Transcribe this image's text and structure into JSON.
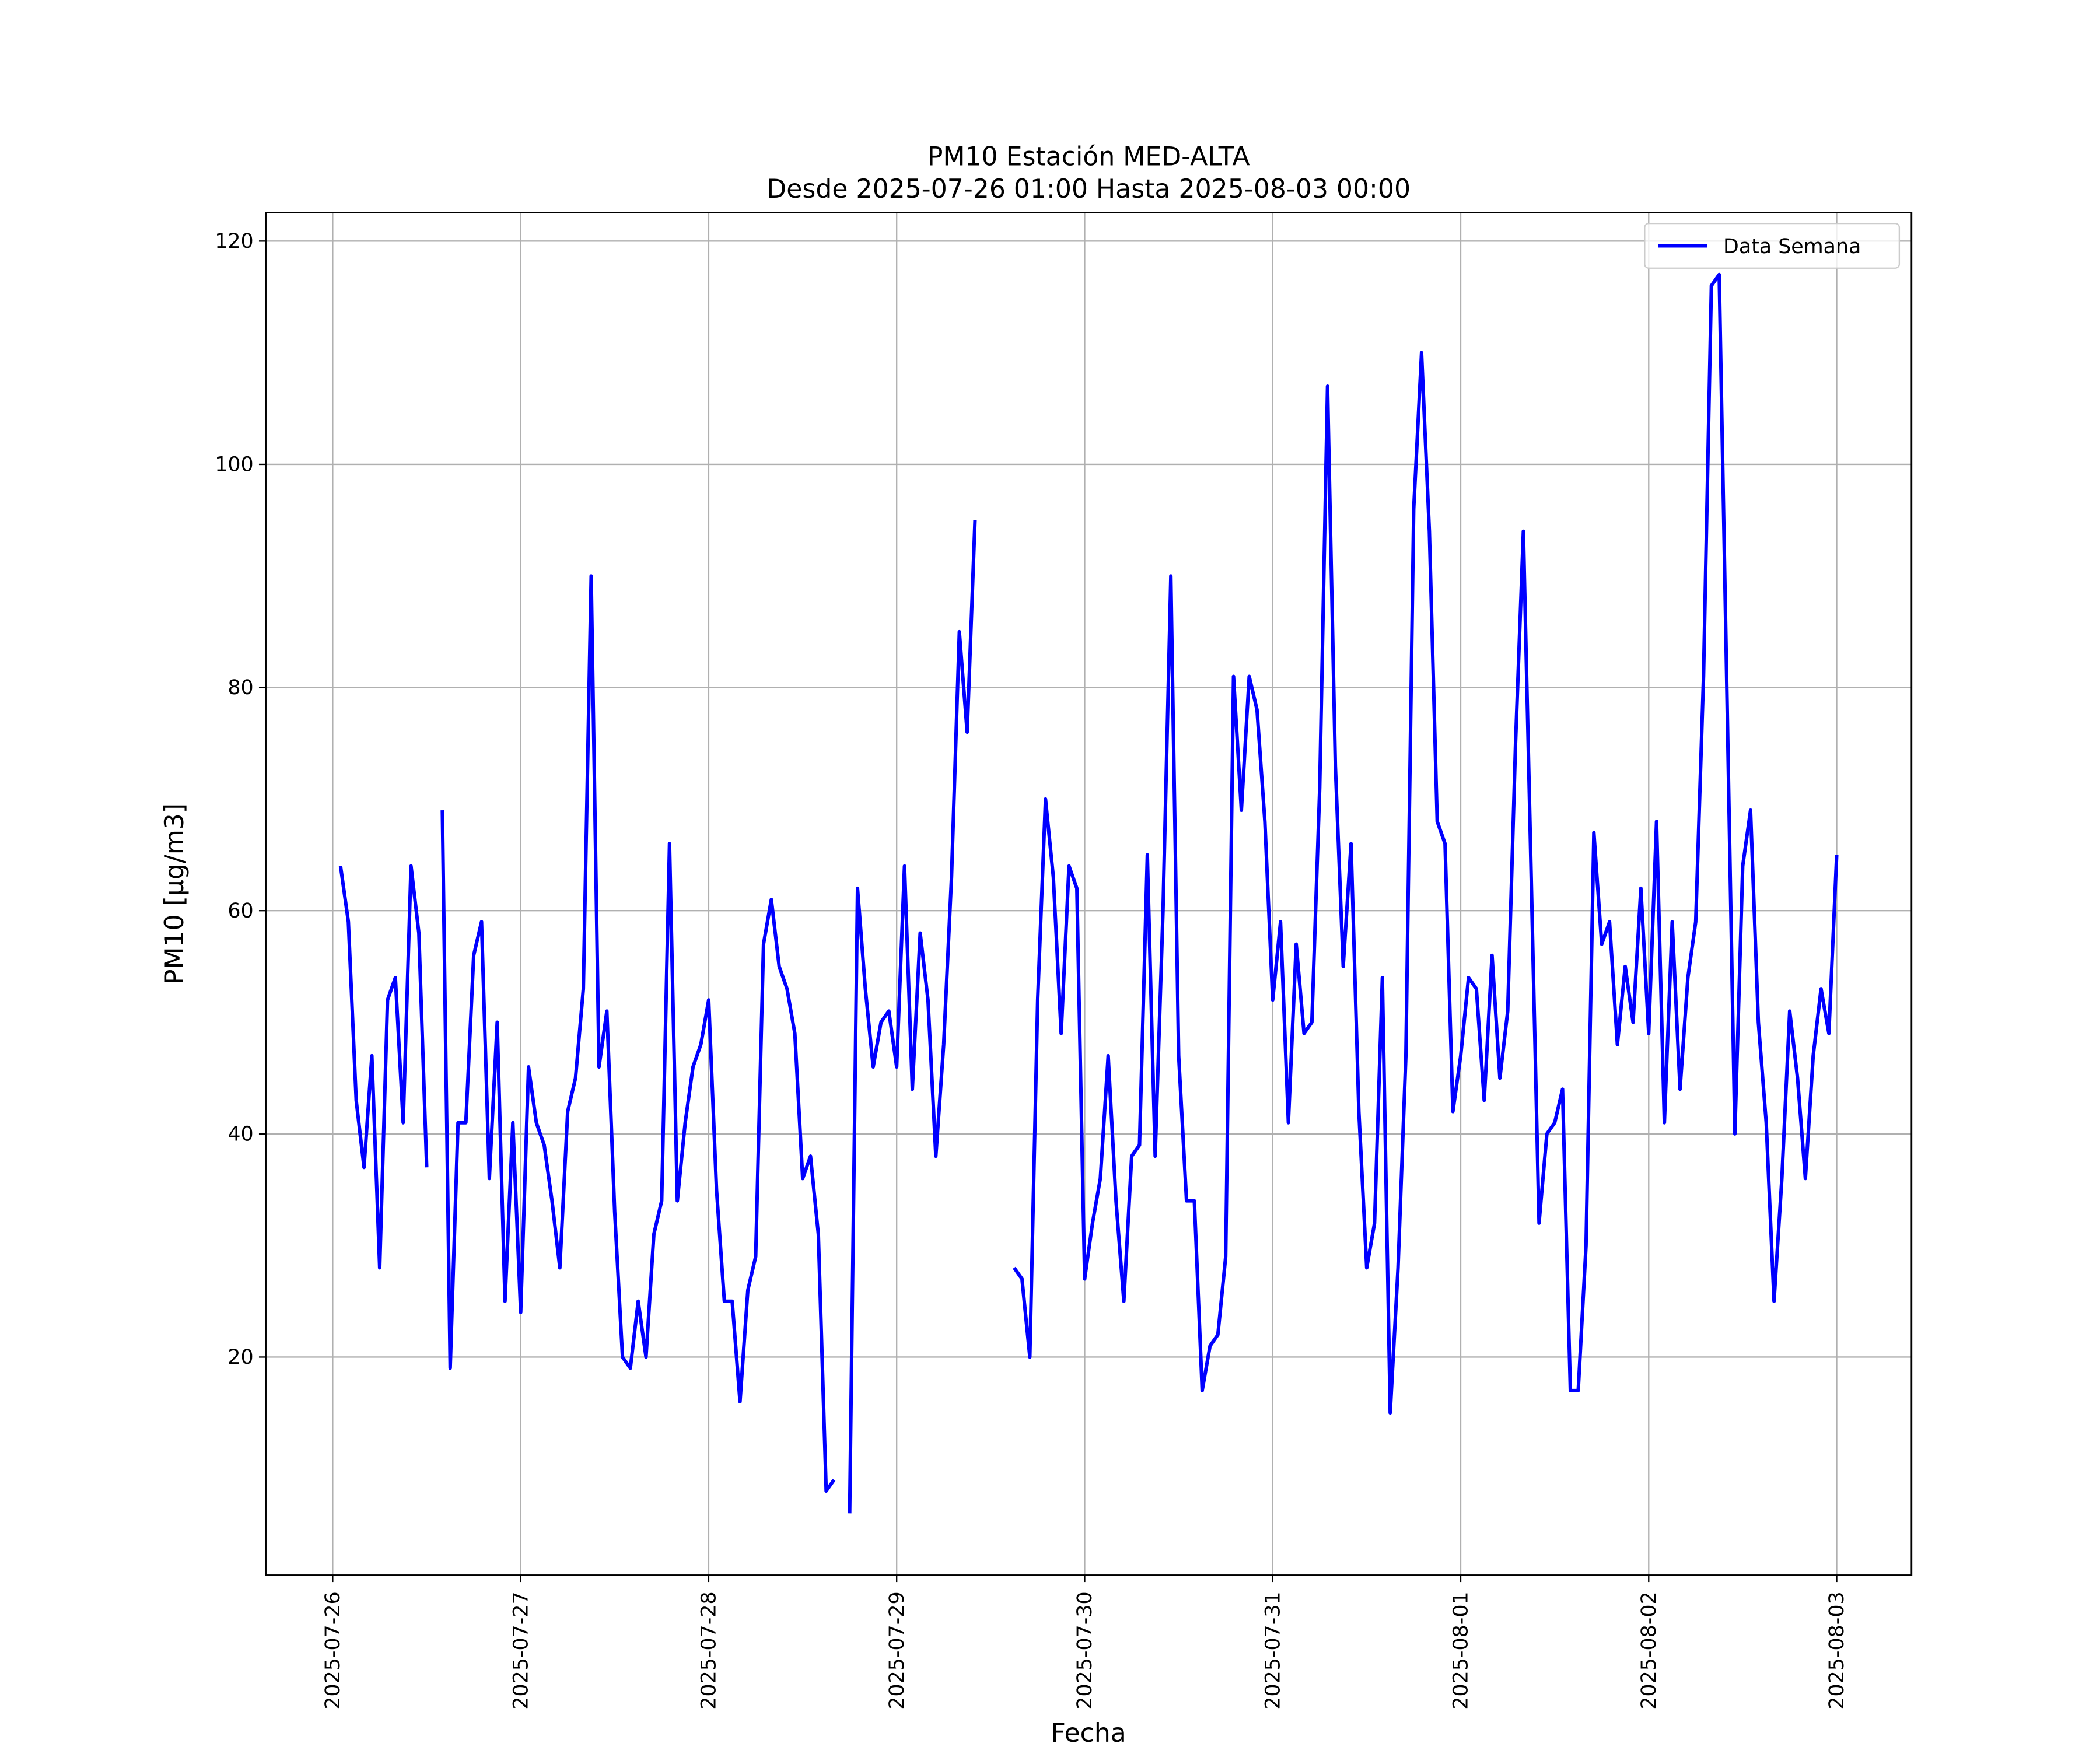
{
  "chart_data": {
    "type": "line",
    "title": "PM10 Estación MED-ALTA",
    "subtitle": "Desde 2025-07-26 01:00 Hasta 2025-08-03 00:00",
    "xlabel": "Fecha",
    "ylabel": "PM10 [μg/m3]",
    "x": [
      "2025-07-26 01:00",
      "2025-07-26 02:00",
      "2025-07-26 03:00",
      "2025-07-26 04:00",
      "2025-07-26 05:00",
      "2025-07-26 06:00",
      "2025-07-26 07:00",
      "2025-07-26 08:00",
      "2025-07-26 09:00",
      "2025-07-26 10:00",
      "2025-07-26 11:00",
      "2025-07-26 12:00",
      "2025-07-26 13:00",
      "2025-07-26 14:00",
      "2025-07-26 15:00",
      "2025-07-26 16:00",
      "2025-07-26 17:00",
      "2025-07-26 18:00",
      "2025-07-26 19:00",
      "2025-07-26 20:00",
      "2025-07-26 21:00",
      "2025-07-26 22:00",
      "2025-07-26 23:00",
      "2025-07-27 00:00",
      "2025-07-27 01:00",
      "2025-07-27 02:00",
      "2025-07-27 03:00",
      "2025-07-27 04:00",
      "2025-07-27 05:00",
      "2025-07-27 06:00",
      "2025-07-27 07:00",
      "2025-07-27 08:00",
      "2025-07-27 09:00",
      "2025-07-27 10:00",
      "2025-07-27 11:00",
      "2025-07-27 12:00",
      "2025-07-27 13:00",
      "2025-07-27 14:00",
      "2025-07-27 15:00",
      "2025-07-27 16:00",
      "2025-07-27 17:00",
      "2025-07-27 18:00",
      "2025-07-27 19:00",
      "2025-07-27 20:00",
      "2025-07-27 21:00",
      "2025-07-27 22:00",
      "2025-07-27 23:00",
      "2025-07-28 00:00",
      "2025-07-28 01:00",
      "2025-07-28 02:00",
      "2025-07-28 03:00",
      "2025-07-28 04:00",
      "2025-07-28 05:00",
      "2025-07-28 06:00",
      "2025-07-28 07:00",
      "2025-07-28 08:00",
      "2025-07-28 09:00",
      "2025-07-28 10:00",
      "2025-07-28 11:00",
      "2025-07-28 12:00",
      "2025-07-28 13:00",
      "2025-07-28 14:00",
      "2025-07-28 15:00",
      "2025-07-28 16:00",
      "2025-07-28 17:00",
      "2025-07-28 18:00",
      "2025-07-28 19:00",
      "2025-07-28 20:00",
      "2025-07-28 21:00",
      "2025-07-28 22:00",
      "2025-07-28 23:00",
      "2025-07-29 00:00",
      "2025-07-29 01:00",
      "2025-07-29 02:00",
      "2025-07-29 03:00",
      "2025-07-29 04:00",
      "2025-07-29 05:00",
      "2025-07-29 06:00",
      "2025-07-29 07:00",
      "2025-07-29 08:00",
      "2025-07-29 09:00",
      "2025-07-29 10:00",
      "2025-07-29 11:00",
      "2025-07-29 12:00",
      "2025-07-29 13:00",
      "2025-07-29 14:00",
      "2025-07-29 15:00",
      "2025-07-29 16:00",
      "2025-07-29 17:00",
      "2025-07-29 18:00",
      "2025-07-29 19:00",
      "2025-07-29 20:00",
      "2025-07-29 21:00",
      "2025-07-29 22:00",
      "2025-07-29 23:00",
      "2025-07-30 00:00",
      "2025-07-30 01:00",
      "2025-07-30 02:00",
      "2025-07-30 03:00",
      "2025-07-30 04:00",
      "2025-07-30 05:00",
      "2025-07-30 06:00",
      "2025-07-30 07:00",
      "2025-07-30 08:00",
      "2025-07-30 09:00",
      "2025-07-30 10:00",
      "2025-07-30 11:00",
      "2025-07-30 12:00",
      "2025-07-30 13:00",
      "2025-07-30 14:00",
      "2025-07-30 15:00",
      "2025-07-30 16:00",
      "2025-07-30 17:00",
      "2025-07-30 18:00",
      "2025-07-30 19:00",
      "2025-07-30 20:00",
      "2025-07-30 21:00",
      "2025-07-30 22:00",
      "2025-07-30 23:00",
      "2025-07-31 00:00",
      "2025-07-31 01:00",
      "2025-07-31 02:00",
      "2025-07-31 03:00",
      "2025-07-31 04:00",
      "2025-07-31 05:00",
      "2025-07-31 06:00",
      "2025-07-31 07:00",
      "2025-07-31 08:00",
      "2025-07-31 09:00",
      "2025-07-31 10:00",
      "2025-07-31 11:00",
      "2025-07-31 12:00",
      "2025-07-31 13:00",
      "2025-07-31 14:00",
      "2025-07-31 15:00",
      "2025-07-31 16:00",
      "2025-07-31 17:00",
      "2025-07-31 18:00",
      "2025-07-31 19:00",
      "2025-07-31 20:00",
      "2025-07-31 21:00",
      "2025-07-31 22:00",
      "2025-07-31 23:00",
      "2025-08-01 00:00",
      "2025-08-01 01:00",
      "2025-08-01 02:00",
      "2025-08-01 03:00",
      "2025-08-01 04:00",
      "2025-08-01 05:00",
      "2025-08-01 06:00",
      "2025-08-01 07:00",
      "2025-08-01 08:00",
      "2025-08-01 09:00",
      "2025-08-01 10:00",
      "2025-08-01 11:00",
      "2025-08-01 12:00",
      "2025-08-01 13:00",
      "2025-08-01 14:00",
      "2025-08-01 15:00",
      "2025-08-01 16:00",
      "2025-08-01 17:00",
      "2025-08-01 18:00",
      "2025-08-01 19:00",
      "2025-08-01 20:00",
      "2025-08-01 21:00",
      "2025-08-01 22:00",
      "2025-08-01 23:00",
      "2025-08-02 00:00",
      "2025-08-02 01:00",
      "2025-08-02 02:00",
      "2025-08-02 03:00",
      "2025-08-02 04:00",
      "2025-08-02 05:00",
      "2025-08-02 06:00",
      "2025-08-02 07:00",
      "2025-08-02 08:00",
      "2025-08-02 09:00",
      "2025-08-02 10:00",
      "2025-08-02 11:00",
      "2025-08-02 12:00",
      "2025-08-02 13:00",
      "2025-08-02 14:00",
      "2025-08-02 15:00",
      "2025-08-02 16:00",
      "2025-08-02 17:00",
      "2025-08-02 18:00",
      "2025-08-02 19:00",
      "2025-08-02 20:00",
      "2025-08-02 21:00",
      "2025-08-02 22:00",
      "2025-08-02 23:00",
      "2025-08-03 00:00"
    ],
    "series": [
      {
        "name": "Data Semana",
        "color": "#0000ff",
        "values": [
          64,
          59,
          43,
          37,
          47,
          28,
          52,
          54,
          41,
          64,
          58,
          37,
          null,
          69,
          19,
          41,
          41,
          56,
          59,
          36,
          50,
          25,
          41,
          24,
          46,
          41,
          39,
          34,
          28,
          42,
          45,
          53,
          90,
          46,
          51,
          33,
          20,
          19,
          25,
          20,
          31,
          34,
          66,
          34,
          41,
          46,
          48,
          52,
          35,
          25,
          25,
          16,
          26,
          29,
          57,
          61,
          55,
          53,
          49,
          36,
          38,
          31,
          8,
          9,
          null,
          6,
          62,
          53,
          46,
          50,
          51,
          46,
          64,
          44,
          58,
          52,
          38,
          48,
          63,
          85,
          76,
          95,
          null,
          null,
          null,
          null,
          28,
          27,
          20,
          52,
          70,
          63,
          49,
          64,
          62,
          27,
          32,
          36,
          47,
          34,
          25,
          38,
          39,
          65,
          38,
          60,
          90,
          47,
          34,
          34,
          17,
          21,
          22,
          29,
          81,
          69,
          81,
          78,
          68,
          52,
          59,
          41,
          57,
          49,
          50,
          71,
          107,
          73,
          55,
          66,
          42,
          28,
          32,
          54,
          15,
          28,
          47,
          96,
          110,
          94,
          68,
          66,
          42,
          47,
          54,
          53,
          43,
          56,
          45,
          51,
          75,
          94,
          63,
          32,
          40,
          41,
          44,
          17,
          17,
          30,
          67,
          57,
          59,
          48,
          55,
          50,
          62,
          49,
          68,
          41,
          59,
          44,
          54,
          59,
          81,
          116,
          117,
          79,
          40,
          64,
          69,
          50,
          41,
          25,
          36,
          51,
          45,
          36,
          47,
          53,
          49,
          65
        ]
      }
    ],
    "xlim": [
      "2025-07-25 15:27",
      "2025-08-03 09:33"
    ],
    "xticks": [
      "2025-07-26",
      "2025-07-27",
      "2025-07-28",
      "2025-07-29",
      "2025-07-30",
      "2025-07-31",
      "2025-08-01",
      "2025-08-02",
      "2025-08-03"
    ],
    "ylim": [
      0.45,
      122.55
    ],
    "yticks": [
      20,
      40,
      60,
      80,
      100,
      120
    ],
    "grid": true,
    "legend": "upper right"
  }
}
